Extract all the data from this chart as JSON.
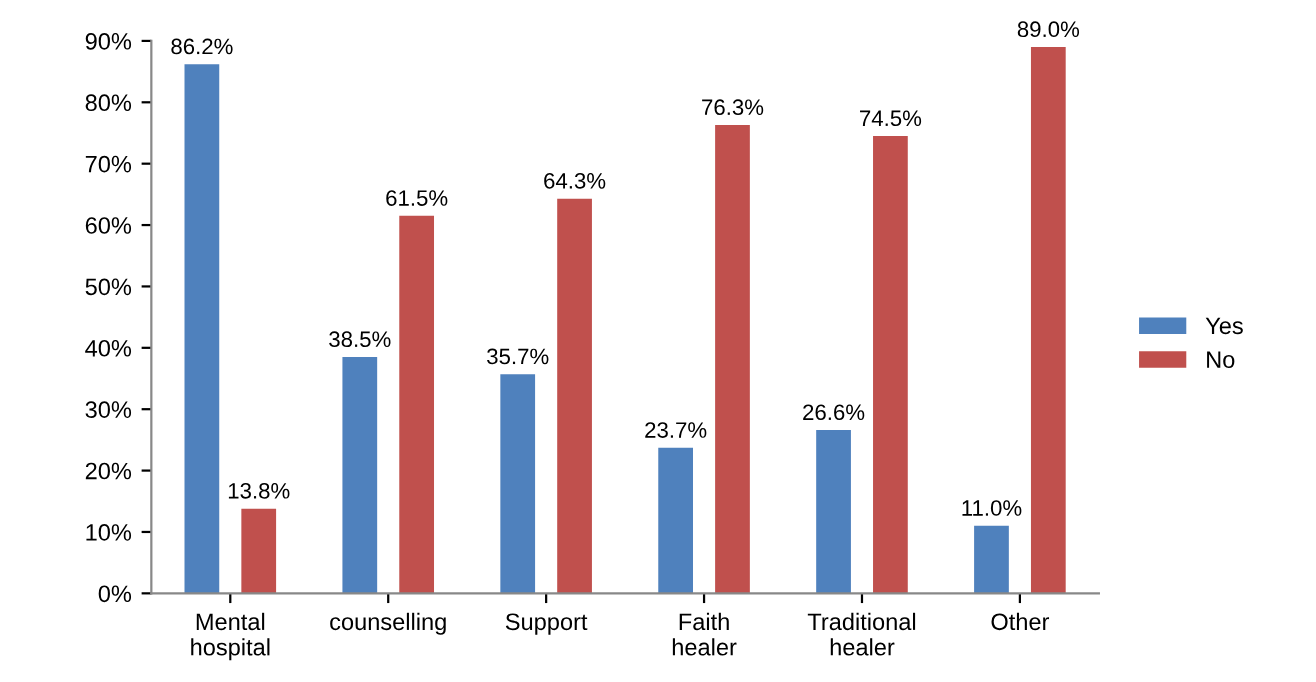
{
  "chart_data": {
    "type": "bar",
    "categories": [
      "Mental\nhospital",
      "counselling",
      "Support",
      "Faith\nhealer",
      "Traditional\nhealer",
      "Other"
    ],
    "series": [
      {
        "name": "Yes",
        "color": "#4f81bd",
        "values": [
          86.2,
          38.5,
          35.7,
          23.7,
          26.6,
          11.0
        ],
        "value_labels": [
          "86.2%",
          "38.5%",
          "35.7%",
          "23.7%",
          "26.6%",
          "11.0%"
        ]
      },
      {
        "name": "No",
        "color": "#c0504d",
        "values": [
          13.8,
          61.5,
          64.3,
          76.3,
          74.5,
          89.0
        ],
        "value_labels": [
          "13.8%",
          "61.5%",
          "64.3%",
          "76.3%",
          "74.5%",
          "89.0%"
        ]
      }
    ],
    "ylim": [
      0,
      90
    ],
    "yticks": [
      {
        "value": 0,
        "label": "0%"
      },
      {
        "value": 10,
        "label": "10%"
      },
      {
        "value": 20,
        "label": "20%"
      },
      {
        "value": 30,
        "label": "30%"
      },
      {
        "value": 40,
        "label": "40%"
      },
      {
        "value": 50,
        "label": "50%"
      },
      {
        "value": 60,
        "label": "60%"
      },
      {
        "value": 70,
        "label": "70%"
      },
      {
        "value": 80,
        "label": "80%"
      },
      {
        "value": 90,
        "label": "90%"
      }
    ],
    "grid": false,
    "legend": "right"
  }
}
